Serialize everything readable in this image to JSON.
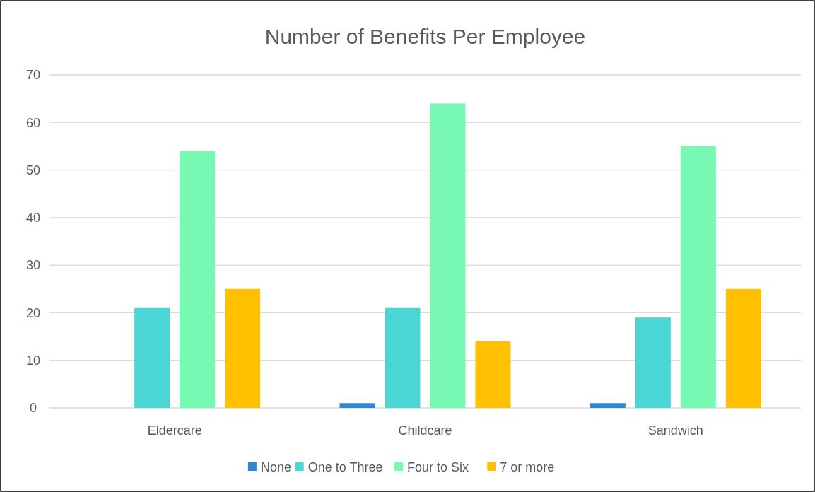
{
  "chart_data": {
    "type": "bar",
    "title": "Number of Benefits Per Employee",
    "categories": [
      "Eldercare",
      "Childcare",
      "Sandwich"
    ],
    "series": [
      {
        "name": "None",
        "color": "#2f86d8",
        "values": [
          0,
          1,
          1
        ]
      },
      {
        "name": "One to Three",
        "color": "#4bd6d6",
        "values": [
          21,
          21,
          19
        ]
      },
      {
        "name": "Four to Six",
        "color": "#78f9b3",
        "values": [
          54,
          64,
          55
        ]
      },
      {
        "name": "7 or more",
        "color": "#ffc000",
        "values": [
          25,
          14,
          25
        ]
      }
    ],
    "ylim": [
      0,
      70
    ],
    "yticks": [
      0,
      10,
      20,
      30,
      40,
      50,
      60,
      70
    ],
    "grid": true,
    "legend": "bottom"
  }
}
